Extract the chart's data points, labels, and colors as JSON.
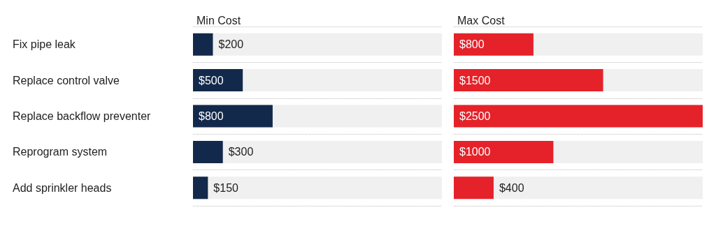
{
  "chart_data": [
    {
      "type": "bar",
      "orientation": "horizontal",
      "title": "Min Cost",
      "categories": [
        "Fix pipe leak",
        "Replace control valve",
        "Replace backflow preventer",
        "Reprogram system",
        "Add sprinkler heads"
      ],
      "values": [
        200,
        500,
        800,
        300,
        150
      ],
      "value_labels": [
        "$200",
        "$500",
        "$800",
        "$300",
        "$150"
      ],
      "color": "#13294b",
      "xlim": [
        0,
        2500
      ],
      "tick_labels": "y",
      "grid": "y"
    },
    {
      "type": "bar",
      "orientation": "horizontal",
      "title": "Max Cost",
      "categories": [
        null,
        null,
        null,
        null,
        null
      ],
      "values": [
        800,
        1500,
        2500,
        1000,
        400
      ],
      "value_labels": [
        "$800",
        "$1500",
        "$2500",
        "$1000",
        "$400"
      ],
      "color": "#e5222a",
      "xlim": [
        0,
        2500
      ],
      "tick_labels": false,
      "grid": "y"
    }
  ]
}
